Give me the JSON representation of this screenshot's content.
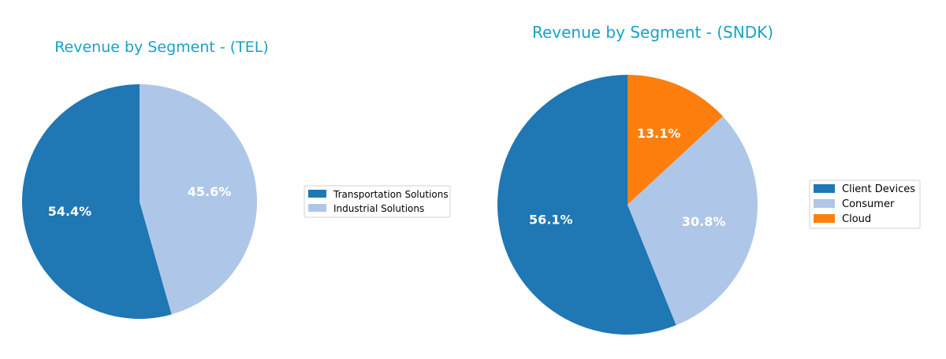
{
  "chart_data": [
    {
      "type": "pie",
      "title": "Revenue by Segment - (TEL)",
      "categories": [
        "Transportation Solutions",
        "Industrial Solutions"
      ],
      "values": [
        54.4,
        45.6
      ],
      "labels": [
        "54.4%",
        "45.6%"
      ],
      "colors": [
        "#1f77b4",
        "#aec7e8"
      ],
      "legend": [
        "Transportation Solutions",
        "Industrial Solutions"
      ],
      "legend_position": "right"
    },
    {
      "type": "pie",
      "title": "Revenue by Segment - (SNDK)",
      "categories": [
        "Client Devices",
        "Consumer",
        "Cloud"
      ],
      "values": [
        56.1,
        30.8,
        13.1
      ],
      "labels": [
        "56.1%",
        "30.8%",
        "13.1%"
      ],
      "colors": [
        "#1f77b4",
        "#aec7e8",
        "#ff7f0e"
      ],
      "legend": [
        "Client Devices",
        "Consumer",
        "Cloud"
      ],
      "legend_position": "right"
    }
  ]
}
